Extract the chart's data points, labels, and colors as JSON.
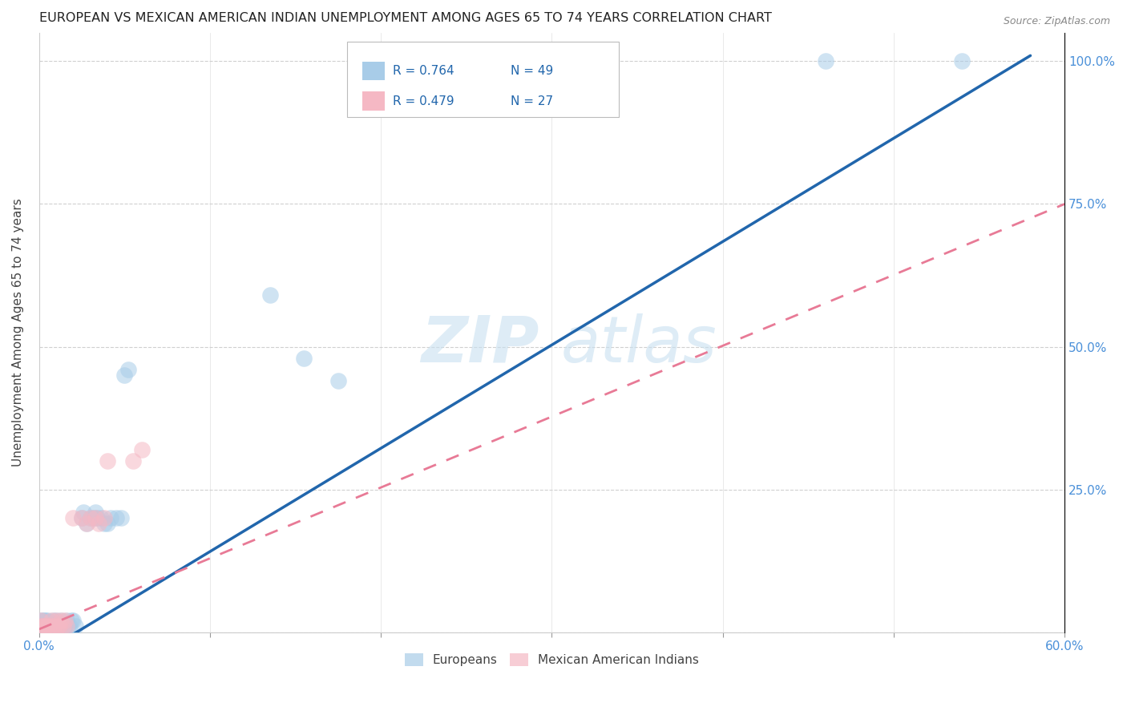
{
  "title": "EUROPEAN VS MEXICAN AMERICAN INDIAN UNEMPLOYMENT AMONG AGES 65 TO 74 YEARS CORRELATION CHART",
  "source": "Source: ZipAtlas.com",
  "ylabel": "Unemployment Among Ages 65 to 74 years",
  "xlim": [
    0.0,
    0.6
  ],
  "ylim": [
    0.0,
    1.05
  ],
  "xticks": [
    0.0,
    0.1,
    0.2,
    0.3,
    0.4,
    0.5,
    0.6
  ],
  "xticklabels": [
    "0.0%",
    "",
    "",
    "",
    "",
    "",
    "60.0%"
  ],
  "ytick_positions": [
    0.0,
    0.25,
    0.5,
    0.75,
    1.0
  ],
  "ytick_labels": [
    "",
    "25.0%",
    "50.0%",
    "75.0%",
    "100.0%"
  ],
  "blue_color": "#a8cce8",
  "pink_color": "#f5b8c4",
  "trend_blue": "#2166ac",
  "trend_pink": "#e87a96",
  "blue_line_x": [
    0.0,
    0.58
  ],
  "blue_line_y": [
    -0.04,
    1.01
  ],
  "pink_line_x": [
    0.0,
    0.6
  ],
  "pink_line_y": [
    0.005,
    0.75
  ],
  "europeans_x": [
    0.001,
    0.001,
    0.001,
    0.002,
    0.002,
    0.003,
    0.003,
    0.004,
    0.004,
    0.005,
    0.005,
    0.006,
    0.007,
    0.008,
    0.008,
    0.009,
    0.01,
    0.01,
    0.011,
    0.012,
    0.013,
    0.014,
    0.015,
    0.016,
    0.017,
    0.018,
    0.019,
    0.02,
    0.021,
    0.025,
    0.026,
    0.028,
    0.03,
    0.032,
    0.033,
    0.034,
    0.036,
    0.038,
    0.04,
    0.042,
    0.045,
    0.048,
    0.05,
    0.052,
    0.135,
    0.155,
    0.175,
    0.46,
    0.54
  ],
  "europeans_y": [
    0.01,
    0.01,
    0.02,
    0.01,
    0.02,
    0.01,
    0.02,
    0.01,
    0.02,
    0.01,
    0.02,
    0.01,
    0.01,
    0.01,
    0.02,
    0.01,
    0.01,
    0.02,
    0.01,
    0.01,
    0.02,
    0.01,
    0.01,
    0.02,
    0.01,
    0.01,
    0.02,
    0.02,
    0.01,
    0.2,
    0.21,
    0.19,
    0.2,
    0.2,
    0.21,
    0.2,
    0.2,
    0.19,
    0.19,
    0.2,
    0.2,
    0.2,
    0.45,
    0.46,
    0.59,
    0.48,
    0.44,
    1.0,
    1.0
  ],
  "mexican_x": [
    0.001,
    0.001,
    0.002,
    0.003,
    0.004,
    0.005,
    0.006,
    0.007,
    0.008,
    0.009,
    0.01,
    0.011,
    0.012,
    0.013,
    0.014,
    0.015,
    0.016,
    0.02,
    0.025,
    0.028,
    0.03,
    0.033,
    0.035,
    0.038,
    0.04,
    0.055,
    0.06
  ],
  "mexican_y": [
    0.01,
    0.02,
    0.01,
    0.01,
    0.01,
    0.01,
    0.01,
    0.02,
    0.01,
    0.01,
    0.02,
    0.01,
    0.01,
    0.02,
    0.01,
    0.02,
    0.01,
    0.2,
    0.2,
    0.19,
    0.2,
    0.2,
    0.19,
    0.2,
    0.3,
    0.3,
    0.32
  ]
}
